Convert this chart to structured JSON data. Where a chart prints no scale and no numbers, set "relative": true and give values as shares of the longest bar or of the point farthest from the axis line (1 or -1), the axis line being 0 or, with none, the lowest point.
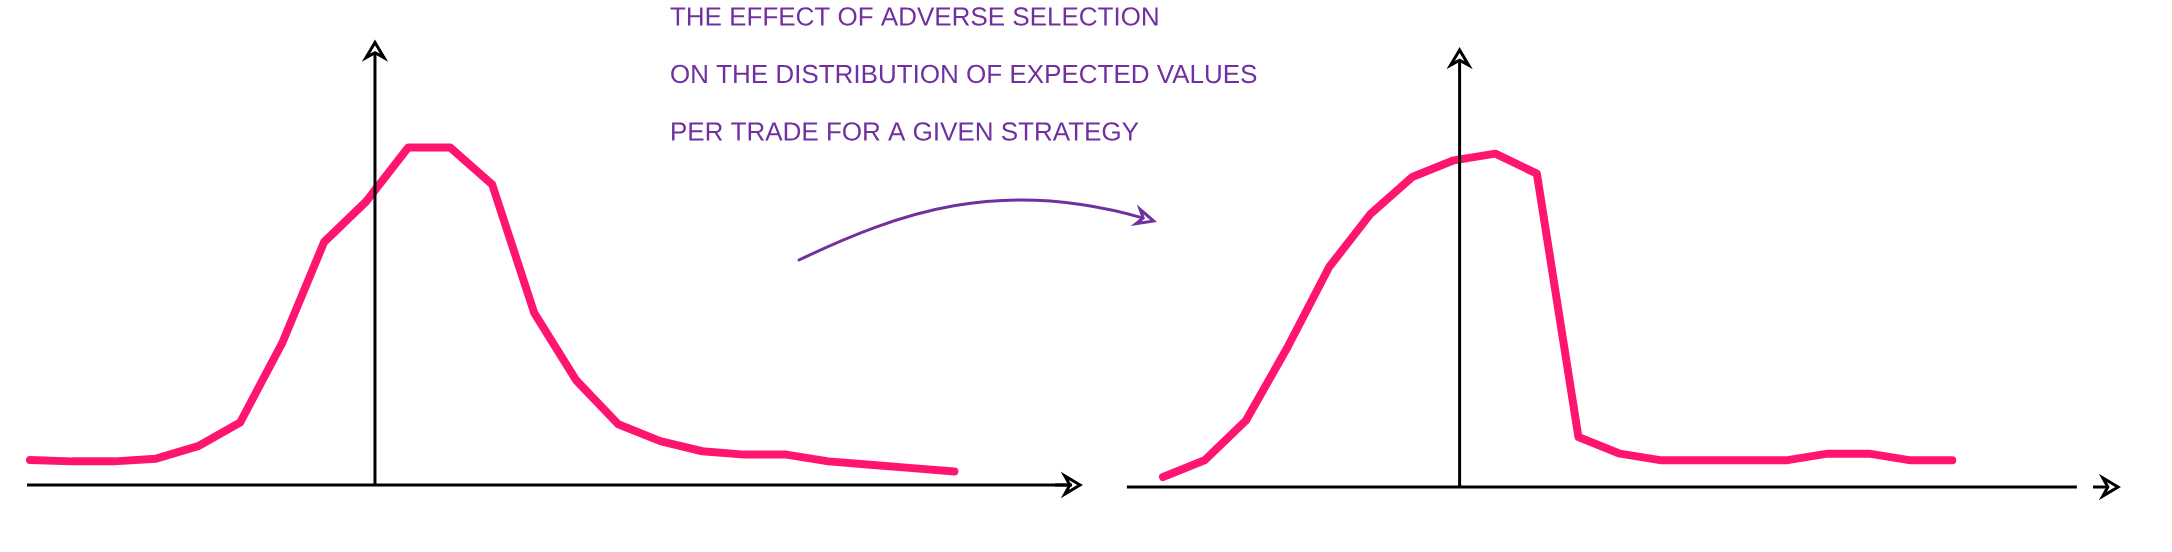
{
  "chart_data": [
    {
      "type": "line",
      "relative": true,
      "color": "#ff1470",
      "annotations": [
        "THE EFFECT OF ADVERSE SELECTION",
        "ON THE DISTRIBUTION OF EXPECTED VALUES",
        "PER TRADE FOR A GIVEN STRATEGY"
      ],
      "categories": [
        null,
        null,
        null,
        null,
        null,
        null,
        null,
        null,
        null,
        null,
        null,
        null,
        null,
        null,
        null,
        null,
        null,
        null,
        null,
        null,
        null,
        null,
        null
      ],
      "values": [
        0.074,
        0.07,
        0.07,
        0.078,
        0.115,
        0.185,
        0.42,
        0.72,
        0.84,
        1.0,
        1.0,
        0.89,
        0.51,
        0.31,
        0.18,
        0.13,
        0.1,
        0.09,
        0.09,
        0.07,
        0.06,
        0.05,
        0.04
      ]
    },
    {
      "type": "line",
      "relative": true,
      "color": "#ff1470",
      "categories": [
        null,
        null,
        null,
        null,
        null,
        null,
        null,
        null,
        null,
        null,
        null,
        null,
        null,
        null,
        null,
        null,
        null,
        null,
        null,
        null
      ],
      "values": [
        0.03,
        0.08,
        0.2,
        0.42,
        0.66,
        0.82,
        0.93,
        0.98,
        1.0,
        0.94,
        0.15,
        0.1,
        0.08,
        0.08,
        0.08,
        0.08,
        0.1,
        0.1,
        0.08,
        0.08
      ]
    }
  ]
}
